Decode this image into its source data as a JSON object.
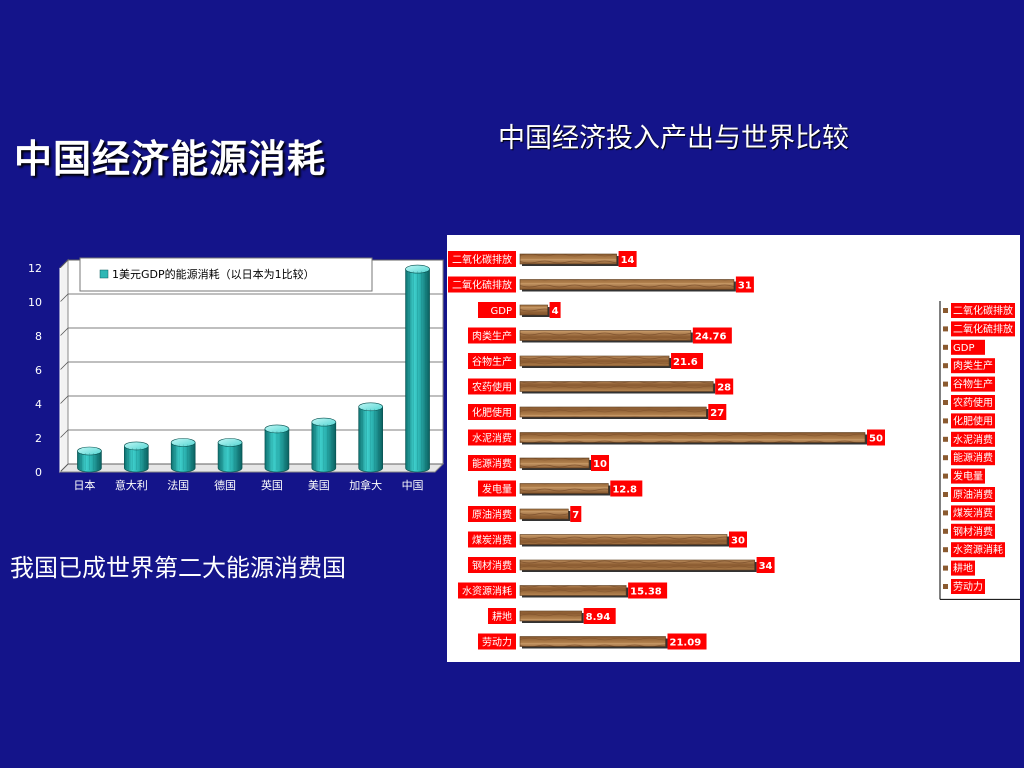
{
  "slide": {
    "title": "中国经济能源消耗",
    "subtitle": "中国经济投入产出与世界比较",
    "caption": "我国已成世界第二大能源消费国"
  },
  "colors": {
    "background": "#14148a",
    "bar3d": "#2fb7b5",
    "wood": "#9a6b3f",
    "label_red": "#ff0000"
  },
  "chart_data": [
    {
      "type": "bar",
      "title": "",
      "categories": [
        "日本",
        "意大利",
        "法国",
        "德国",
        "英国",
        "美国",
        "加拿大",
        "中国"
      ],
      "series": [
        {
          "name": "1美元GDP的能源消耗（以日本为1比较）",
          "values": [
            1,
            1.3,
            1.5,
            1.5,
            2.3,
            2.7,
            3.6,
            11.7
          ]
        }
      ],
      "xlabel": "",
      "ylabel": "",
      "yticks": [
        "0",
        "2",
        "4",
        "6",
        "8",
        "10",
        "12"
      ],
      "ylim": [
        0,
        12
      ],
      "grid": true,
      "legend": "top"
    },
    {
      "type": "bar",
      "orientation": "horizontal",
      "title": "",
      "categories": [
        "二氧化碳排放",
        "二氧化硫排放",
        "GDP",
        "肉类生产",
        "谷物生产",
        "农药使用",
        "化肥使用",
        "水泥消费",
        "能源消费",
        "发电量",
        "原油消费",
        "煤炭消费",
        "钢材消费",
        "水资源消耗",
        "耕地",
        "劳动力"
      ],
      "values": [
        14,
        31,
        4,
        24.76,
        21.6,
        28,
        27,
        50,
        10,
        12.8,
        7,
        30,
        34,
        15.38,
        8.94,
        21.09
      ],
      "value_labels": [
        "14",
        "31",
        "4",
        "24.76",
        "21.6",
        "28",
        "27",
        "50",
        "10",
        "12.8",
        "7",
        "30",
        "34",
        "15.38",
        "8.94",
        "21.09"
      ],
      "xlim": [
        0,
        50
      ],
      "grid": false,
      "legend": "right",
      "legend_entries": [
        "二氧化碳排放",
        "二氧化硫排放",
        "GDP",
        "肉类生产",
        "谷物生产",
        "农药使用",
        "化肥使用",
        "水泥消费",
        "能源消费",
        "发电量",
        "原油消费",
        "煤炭消费",
        "钢材消费",
        "水资源消耗",
        "耕地",
        "劳动力"
      ]
    }
  ]
}
